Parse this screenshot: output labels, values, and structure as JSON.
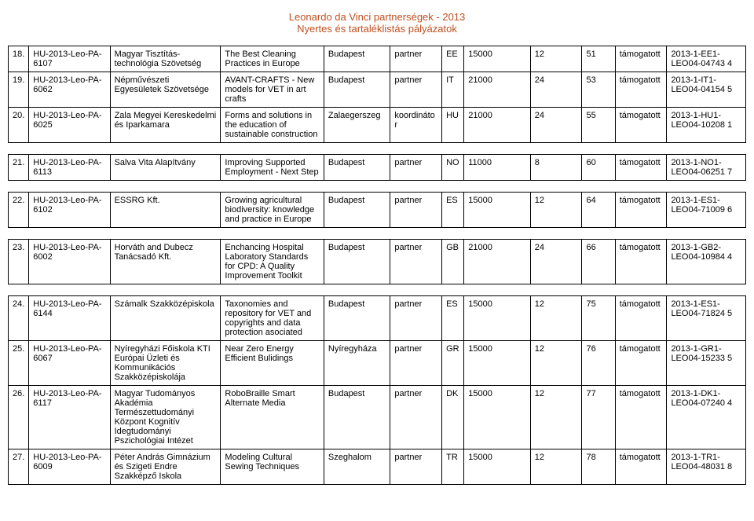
{
  "header": {
    "title": "Leonardo da Vinci partnerségek - 2013",
    "subtitle": "Nyertes és tartaléklistás pályázatok"
  },
  "rows": [
    {
      "n": "18.",
      "id": "HU-2013-Leo-PA-6107",
      "org": "Magyar Tisztítás-technológia Szövetség",
      "proj": "The Best Cleaning Practices in Europe",
      "city": "Budapest",
      "role": "partner",
      "cc": "EE",
      "amt": "15000",
      "v1": "12",
      "v2": "51",
      "status": "támogatott",
      "ref": "2013-1-EE1-LEO04-04743 4"
    },
    {
      "n": "19.",
      "id": "HU-2013-Leo-PA-6062",
      "org": "Népművészeti Egyesületek Szövetsége",
      "proj": "AVANT-CRAFTS - New models for VET in art crafts",
      "city": "Budapest",
      "role": "partner",
      "cc": "IT",
      "amt": "21000",
      "v1": "24",
      "v2": "53",
      "status": "támogatott",
      "ref": "2013-1-IT1-LEO04-04154 5"
    },
    {
      "n": "20.",
      "id": "HU-2013-Leo-PA-6025",
      "org": "Zala Megyei Kereskedelmi és Iparkamara",
      "proj": "Forms and solutions in the education of sustainable construction",
      "city": "Zalaegerszeg",
      "role": "koordinátor",
      "cc": "HU",
      "amt": "21000",
      "v1": "24",
      "v2": "55",
      "status": "támogatott",
      "ref": "2013-1-HU1-LEO04-10208 1"
    },
    {
      "n": "21.",
      "id": "HU-2013-Leo-PA-6113",
      "org": "Salva Vita Alapítvány",
      "proj": "Improving Supported Employment - Next Step",
      "city": "Budapest",
      "role": "partner",
      "cc": "NO",
      "amt": "11000",
      "v1": "8",
      "v2": "60",
      "status": "támogatott",
      "ref": "2013-1-NO1-LEO04-06251 7"
    },
    {
      "n": "22.",
      "id": "HU-2013-Leo-PA-6102",
      "org": "ESSRG Kft.",
      "proj": "Growing agricultural biodiversity: knowledge and practice in Europe",
      "city": "Budapest",
      "role": "partner",
      "cc": "ES",
      "amt": "15000",
      "v1": "12",
      "v2": "64",
      "status": "támogatott",
      "ref": "2013-1-ES1-LEO04-71009 6"
    },
    {
      "n": "23.",
      "id": "HU-2013-Leo-PA-6002",
      "org": "Horváth and Dubecz Tanácsadó Kft.",
      "proj": "Enchancing Hospital Laboratory Standards for CPD: A Quality Improvement Toolkit",
      "city": "Budapest",
      "role": "partner",
      "cc": "GB",
      "amt": "21000",
      "v1": "24",
      "v2": "66",
      "status": "támogatott",
      "ref": "2013-1-GB2-LEO04-10984 4"
    },
    {
      "n": "24.",
      "id": "HU-2013-Leo-PA-6144",
      "org": "Számalk Szakközépiskola",
      "proj": "Taxonomies and repository for VET and copyrights and data protection asociated",
      "city": "Budapest",
      "role": "partner",
      "cc": "ES",
      "amt": "15000",
      "v1": "12",
      "v2": "75",
      "status": "támogatott",
      "ref": "2013-1-ES1-LEO04-71824 5"
    },
    {
      "n": "25.",
      "id": "HU-2013-Leo-PA-6067",
      "org": "Nyíregyházi Főiskola KTI Európai Üzleti és Kommunikációs Szakközépiskolája",
      "proj": "Near Zero Energy Efficient Bulidings",
      "city": "Nyíregyháza",
      "role": "partner",
      "cc": "GR",
      "amt": "15000",
      "v1": "12",
      "v2": "76",
      "status": "támogatott",
      "ref": "2013-1-GR1-LEO04-15233 5"
    },
    {
      "n": "26.",
      "id": "HU-2013-Leo-PA-6117",
      "org": "Magyar Tudományos Akadémia Természettudományi Központ Kognitív Idegtudományi Pszichológiai Intézet",
      "proj": "RoboBraille Smart Alternate Media",
      "city": "Budapest",
      "role": "partner",
      "cc": "DK",
      "amt": "15000",
      "v1": "12",
      "v2": "77",
      "status": "támogatott",
      "ref": "2013-1-DK1-LEO04-07240 4"
    },
    {
      "n": "27.",
      "id": "HU-2013-Leo-PA-6009",
      "org": "Péter András Gimnázium és Szigeti Endre Szakképző Iskola",
      "proj": "Modeling Cultural Sewing Techniques",
      "city": "Szeghalom",
      "role": "partner",
      "cc": "TR",
      "amt": "15000",
      "v1": "12",
      "v2": "78",
      "status": "támogatott",
      "ref": "2013-1-TR1-LEO04-48031 8"
    }
  ],
  "spacerAfter": [
    2,
    3,
    4,
    5
  ]
}
